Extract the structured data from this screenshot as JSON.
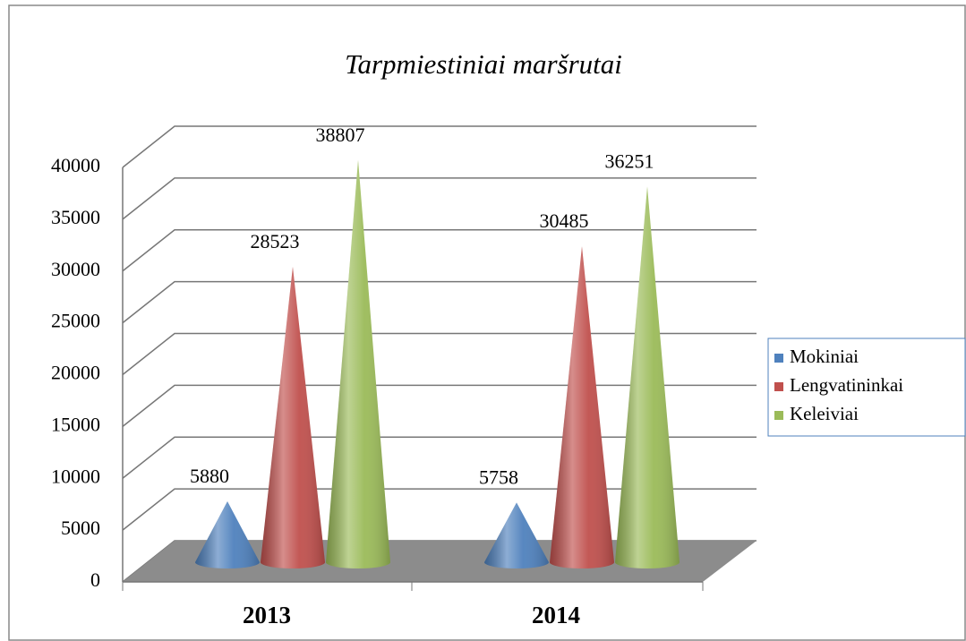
{
  "chart_data": {
    "type": "cone",
    "title": "Tarpmiestiniai maršrutai",
    "categories": [
      "2013",
      "2014"
    ],
    "series": [
      {
        "name": "Mokiniai",
        "color": "#4f81bd",
        "values": [
          5880,
          5758
        ]
      },
      {
        "name": "Lengvatininkai",
        "color": "#c0504d",
        "values": [
          28523,
          30485
        ]
      },
      {
        "name": "Keleiviai",
        "color": "#9bbb59",
        "values": [
          38807,
          36251
        ]
      }
    ],
    "ylim": [
      0,
      40000
    ],
    "yticks": [
      0,
      5000,
      10000,
      15000,
      20000,
      25000,
      30000,
      35000,
      40000
    ],
    "grid": true,
    "legend": "right"
  }
}
